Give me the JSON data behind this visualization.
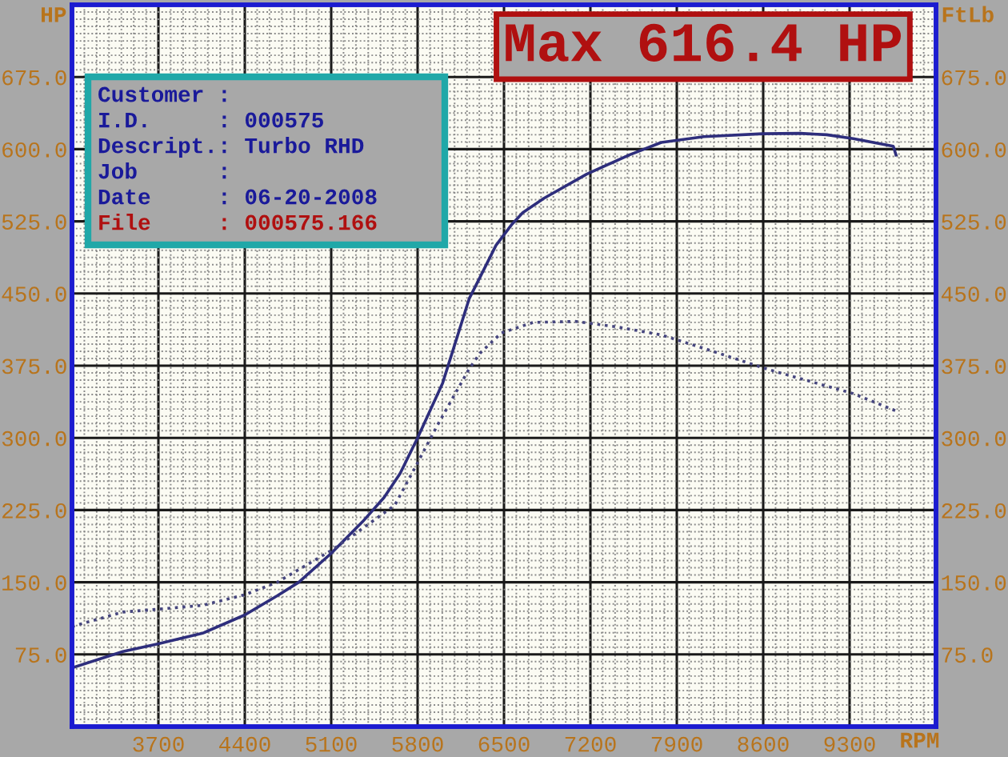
{
  "chart_data": {
    "type": "line",
    "xlabel": "RPM",
    "ylabel": "HP",
    "y2label": "FtLb",
    "annotations": [
      "Max 616.4 HP",
      "Customer :",
      "I.D.     : 000575",
      "Descript.: Turbo RHD",
      "Job      :",
      "Date     : 06-20-2008",
      "File     : 000575.166"
    ],
    "xlim": [
      3000,
      10000
    ],
    "xticks": [
      3700,
      4400,
      5100,
      5800,
      6500,
      7200,
      7900,
      8600,
      9300
    ],
    "ylim": [
      0,
      750
    ],
    "yticks": [
      {
        "value": 75,
        "label": "75.0"
      },
      {
        "value": 150,
        "label": "150.0"
      },
      {
        "value": 225,
        "label": "225.0"
      },
      {
        "value": 300,
        "label": "300.0"
      },
      {
        "value": 375,
        "label": "375.0"
      },
      {
        "value": 450,
        "label": "450.0"
      },
      {
        "value": 525,
        "label": "525.0"
      },
      {
        "value": 600,
        "label": "600.0"
      },
      {
        "value": 675,
        "label": "675.0"
      }
    ],
    "y2lim": [
      0,
      750
    ],
    "y2ticks": [
      {
        "value": 75,
        "label": "75.0"
      },
      {
        "value": 150,
        "label": "150.0"
      },
      {
        "value": 225,
        "label": "225.0"
      },
      {
        "value": 300,
        "label": "300.0"
      },
      {
        "value": 375,
        "label": "375.0"
      },
      {
        "value": 450,
        "label": "450.0"
      },
      {
        "value": 525,
        "label": "525.0"
      },
      {
        "value": 600,
        "label": "600.0"
      },
      {
        "value": 675,
        "label": "675.0"
      }
    ],
    "grid": true,
    "series": [
      {
        "color": "#2e2e7c",
        "line_style": "solid",
        "x": [
          3000,
          3411,
          3700,
          4058,
          4400,
          4663,
          4837,
          5100,
          5355,
          5528,
          5658,
          5800,
          6003,
          6219,
          6306,
          6435,
          6565,
          6652,
          6824,
          7170,
          7515,
          7774,
          8120,
          8595,
          8898,
          9114,
          9330,
          9654,
          9676
        ],
        "values": [
          61,
          78,
          86,
          97,
          116,
          136,
          150,
          180,
          213,
          238,
          263,
          300,
          357,
          445,
          467,
          500,
          522,
          534,
          549,
          574,
          594,
          607,
          613,
          616,
          616.4,
          615,
          611,
          603,
          594
        ]
      },
      {
        "color": "#46467e",
        "line_style": "dotted",
        "axis": "y2",
        "x": [
          3000,
          3411,
          3700,
          4058,
          4400,
          4663,
          5100,
          5268,
          5615,
          5787,
          5960,
          6219,
          6306,
          6478,
          6737,
          7083,
          7429,
          7774,
          8120,
          8595,
          8725,
          9330,
          9676
        ],
        "values": [
          104,
          119,
          122,
          126,
          137,
          150,
          183,
          198,
          230,
          271,
          313,
          372,
          388,
          409,
          420,
          421,
          415,
          407,
          393,
          373,
          368,
          346,
          328
        ]
      }
    ]
  }
}
